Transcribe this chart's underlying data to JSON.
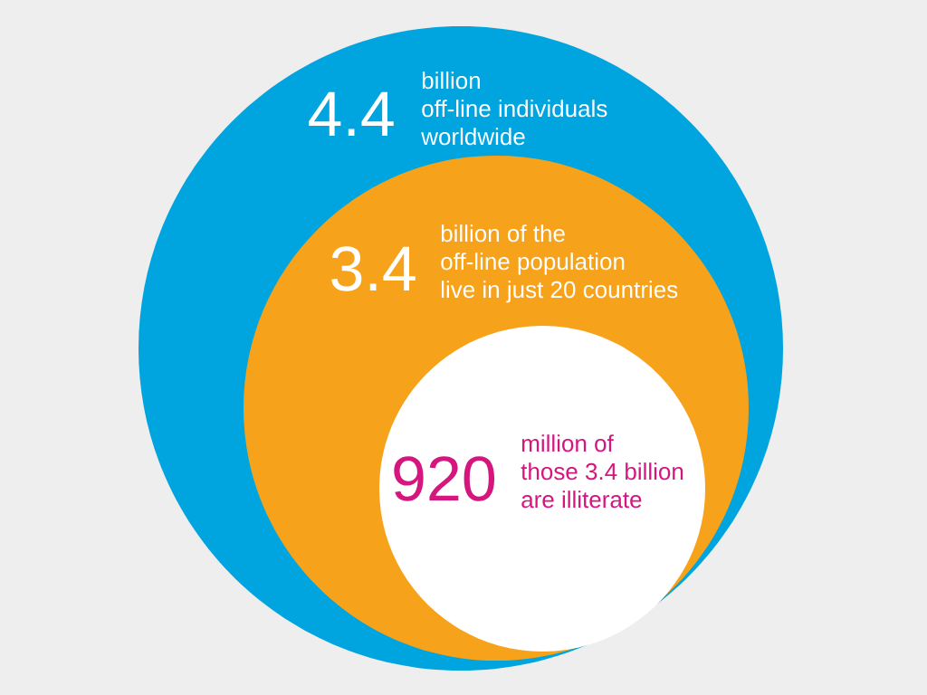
{
  "chart_data": {
    "type": "other",
    "categories": [
      "billion off-line individuals worldwide",
      "billion of the off-line population live in just 20 countries",
      "million of those 3.4 billion are illiterate"
    ],
    "values": [
      4.4,
      3.4,
      920
    ],
    "colors": [
      "#00a5df",
      "#f7a21b",
      "#ffffff"
    ],
    "data_labels": true
  }
}
